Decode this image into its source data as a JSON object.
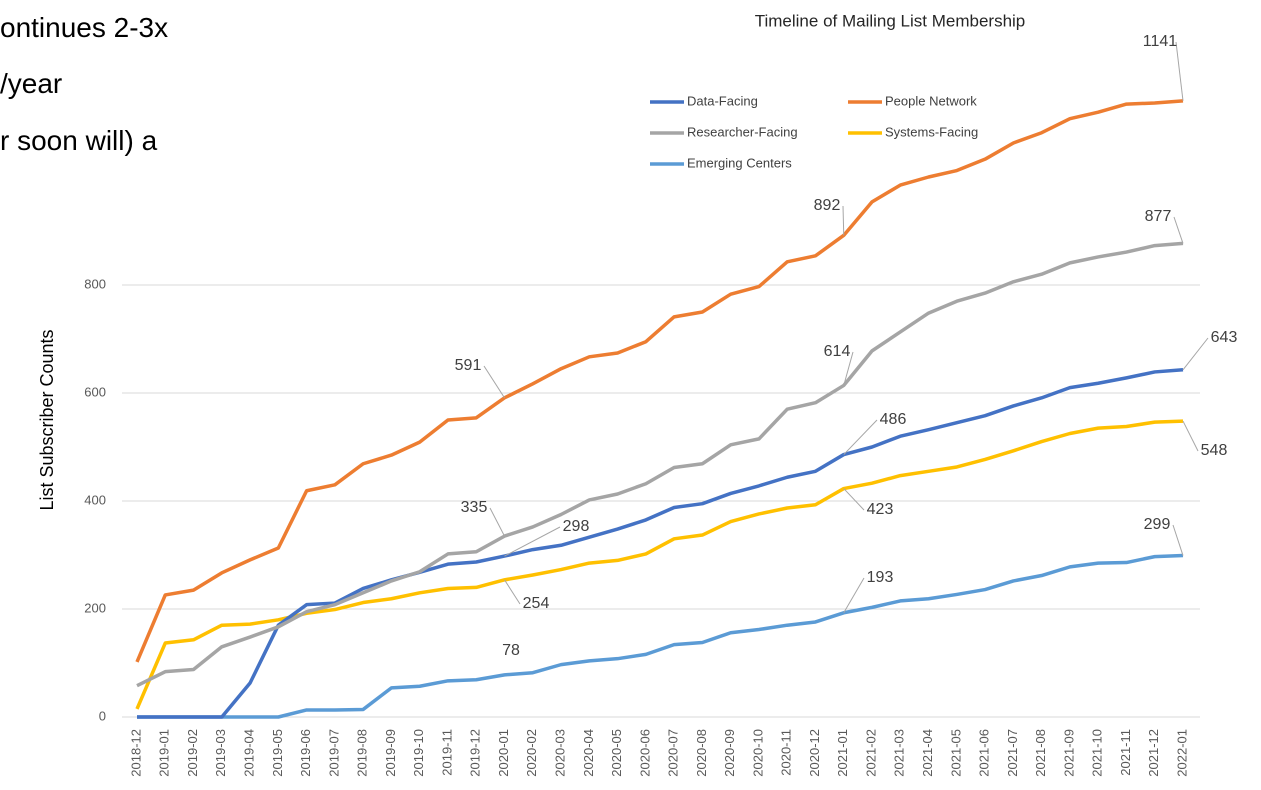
{
  "slide_text": [
    "ontinues 2-3x",
    "/year",
    "r soon will) a"
  ],
  "chart_data": {
    "type": "line",
    "title": "Timeline of Mailing List Membership",
    "y_label": "List Subscriber Counts",
    "categories": [
      "2018-12",
      "2019-01",
      "2019-02",
      "2019-03",
      "2019-04",
      "2019-05",
      "2019-06",
      "2019-07",
      "2019-08",
      "2019-09",
      "2019-10",
      "2019-11",
      "2019-12",
      "2020-01",
      "2020-02",
      "2020-03",
      "2020-04",
      "2020-05",
      "2020-06",
      "2020-07",
      "2020-08",
      "2020-09",
      "2020-10",
      "2020-11",
      "2020-12",
      "2021-01",
      "2021-02",
      "2021-03",
      "2021-04",
      "2021-05",
      "2021-06",
      "2021-07",
      "2021-08",
      "2021-09",
      "2021-10",
      "2021-11",
      "2021-12",
      "2022-01"
    ],
    "series": [
      {
        "name": "Data-Facing",
        "color": "#4472c4",
        "values": [
          0,
          0,
          0,
          0,
          63,
          170,
          208,
          211,
          238,
          254,
          268,
          283,
          287,
          298,
          310,
          318,
          333,
          348,
          365,
          388,
          395,
          414,
          428,
          444,
          455,
          486,
          500,
          520,
          532,
          545,
          558,
          576,
          591,
          610,
          618,
          628,
          639,
          643
        ]
      },
      {
        "name": "People Network",
        "color": "#ed7d31",
        "values": [
          102,
          226,
          235,
          267,
          291,
          313,
          419,
          430,
          469,
          485,
          509,
          550,
          554,
          591,
          617,
          645,
          667,
          674,
          695,
          741,
          750,
          783,
          797,
          843,
          854,
          892,
          954,
          985,
          1000,
          1012,
          1033,
          1063,
          1082,
          1108,
          1120,
          1135,
          1137,
          1141
        ]
      },
      {
        "name": "Researcher-Facing",
        "color": "#a5a5a5",
        "values": [
          58,
          84,
          88,
          130,
          148,
          167,
          195,
          208,
          230,
          252,
          269,
          302,
          306,
          335,
          352,
          375,
          402,
          413,
          432,
          462,
          469,
          504,
          515,
          570,
          582,
          614,
          678,
          713,
          748,
          770,
          785,
          806,
          820,
          841,
          852,
          861,
          873,
          877
        ]
      },
      {
        "name": "Systems-Facing",
        "color": "#ffc000",
        "values": [
          15,
          137,
          143,
          170,
          172,
          180,
          192,
          199,
          212,
          219,
          230,
          238,
          240,
          254,
          263,
          273,
          285,
          290,
          302,
          330,
          337,
          362,
          376,
          387,
          393,
          423,
          433,
          447,
          455,
          463,
          477,
          493,
          510,
          525,
          535,
          538,
          546,
          548
        ]
      },
      {
        "name": "Emerging Centers",
        "color": "#5b9bd5",
        "values": [
          0,
          0,
          0,
          0,
          0,
          0,
          13,
          13,
          14,
          54,
          57,
          67,
          69,
          78,
          82,
          97,
          104,
          108,
          116,
          134,
          138,
          156,
          162,
          170,
          176,
          193,
          203,
          215,
          219,
          227,
          236,
          252,
          262,
          278,
          285,
          286,
          297,
          299
        ]
      }
    ],
    "ylim": [
      0,
      1200
    ],
    "yticks": [
      0,
      200,
      400,
      600,
      800
    ],
    "grid": true
  }
}
